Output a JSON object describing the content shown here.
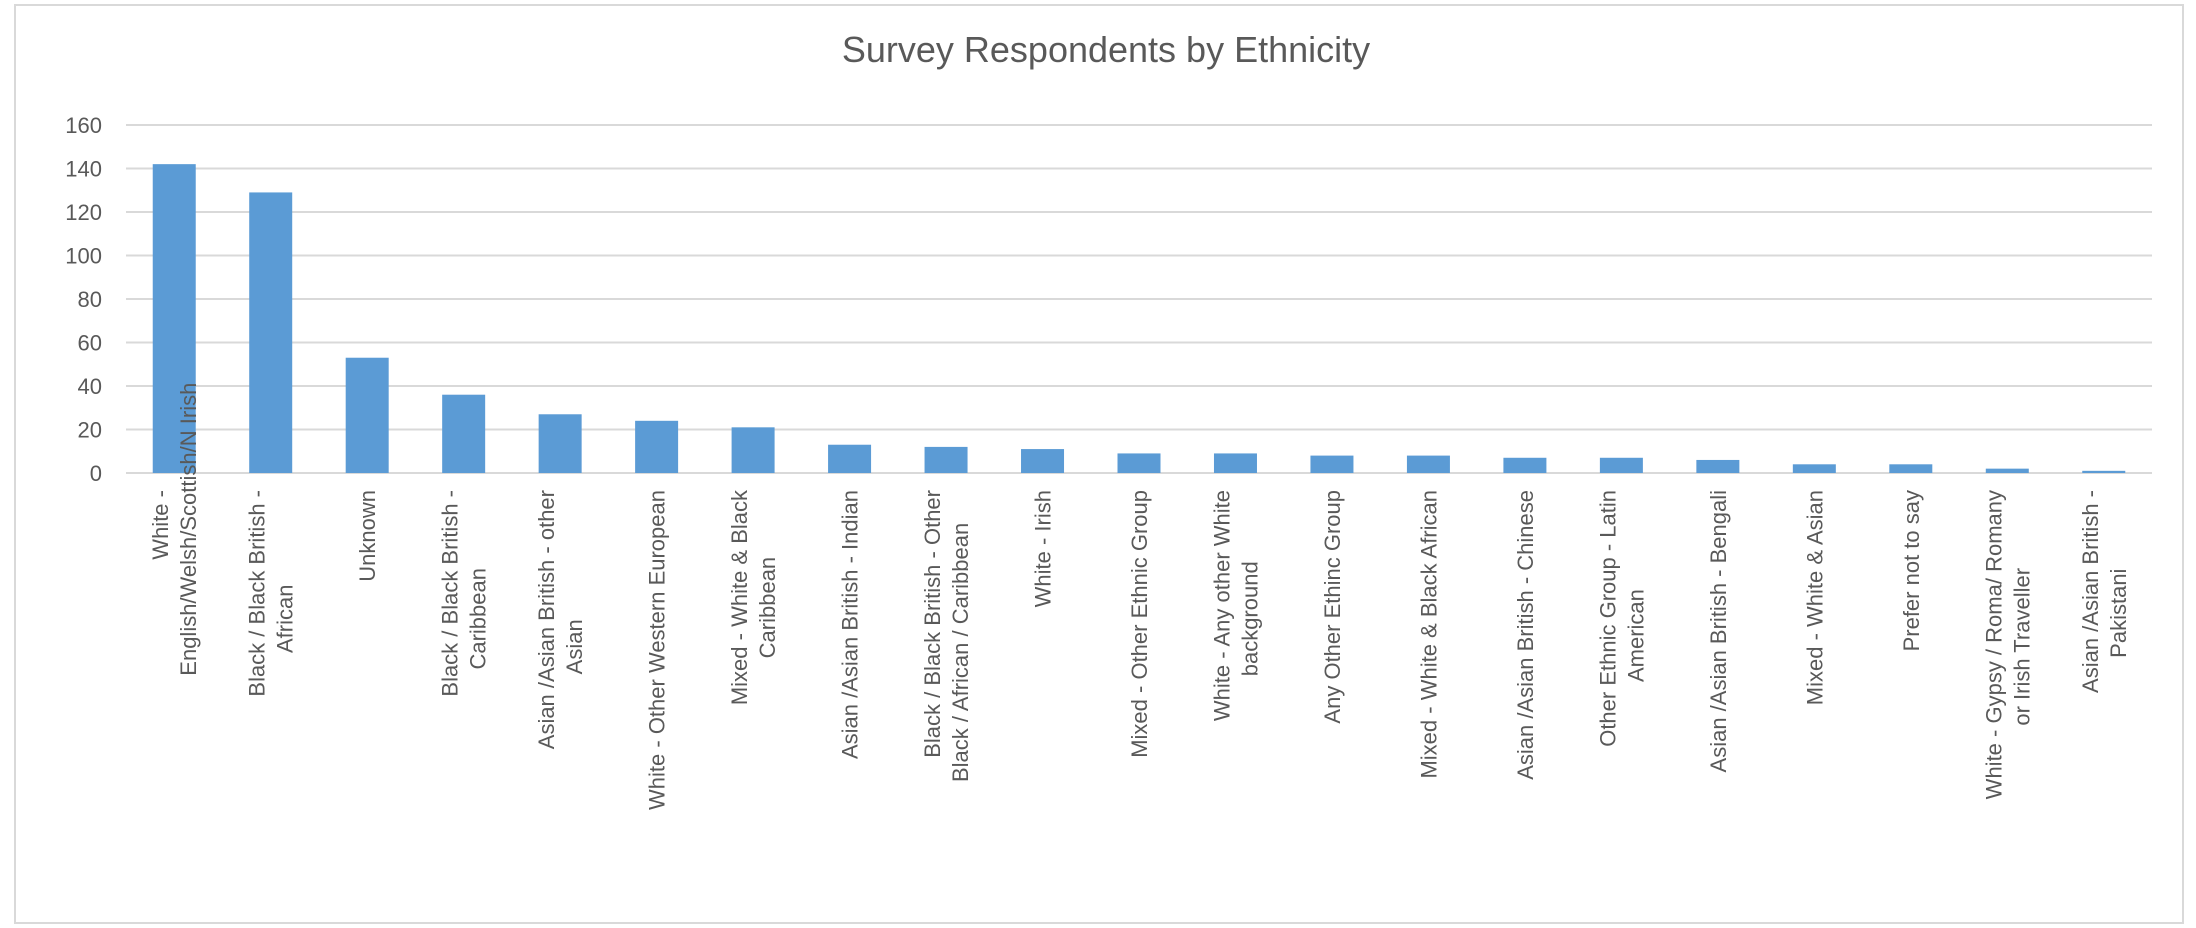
{
  "chart_data": {
    "type": "bar",
    "title": "Survey Respondents by Ethnicity",
    "xlabel": "",
    "ylabel": "",
    "ylim": [
      0,
      160
    ],
    "yticks": [
      0,
      20,
      40,
      60,
      80,
      100,
      120,
      140,
      160
    ],
    "grid": true,
    "legend": "none",
    "bar_color": "#5b9bd5",
    "categories": [
      "White - English/Welsh/Scottish/N Irish",
      "Black / Black British - African",
      "Unknown",
      "Black / Black British - Caribbean",
      "Asian /Asian British - other Asian",
      "White - Other Western European",
      "Mixed - White & Black Caribbean",
      "Asian /Asian British - Indian",
      "Black / Black British - Other Black / African / Caribbean",
      "White - Irish",
      "Mixed - Other Ethnic Group",
      "White - Any other White background",
      "Any Other Ethinc Group",
      "Mixed - White & Black African",
      "Asian /Asian British - Chinese",
      "Other Ethnic Group - Latin American",
      "Asian /Asian British - Bengali",
      "Mixed - White & Asian",
      "Prefer not to say",
      "White - Gypsy / Roma/ Romany or Irish Traveller",
      "Asian /Asian British - Pakistani"
    ],
    "values": [
      142,
      129,
      53,
      36,
      27,
      24,
      21,
      13,
      12,
      11,
      9,
      9,
      8,
      8,
      7,
      7,
      6,
      4,
      4,
      2,
      1
    ]
  }
}
